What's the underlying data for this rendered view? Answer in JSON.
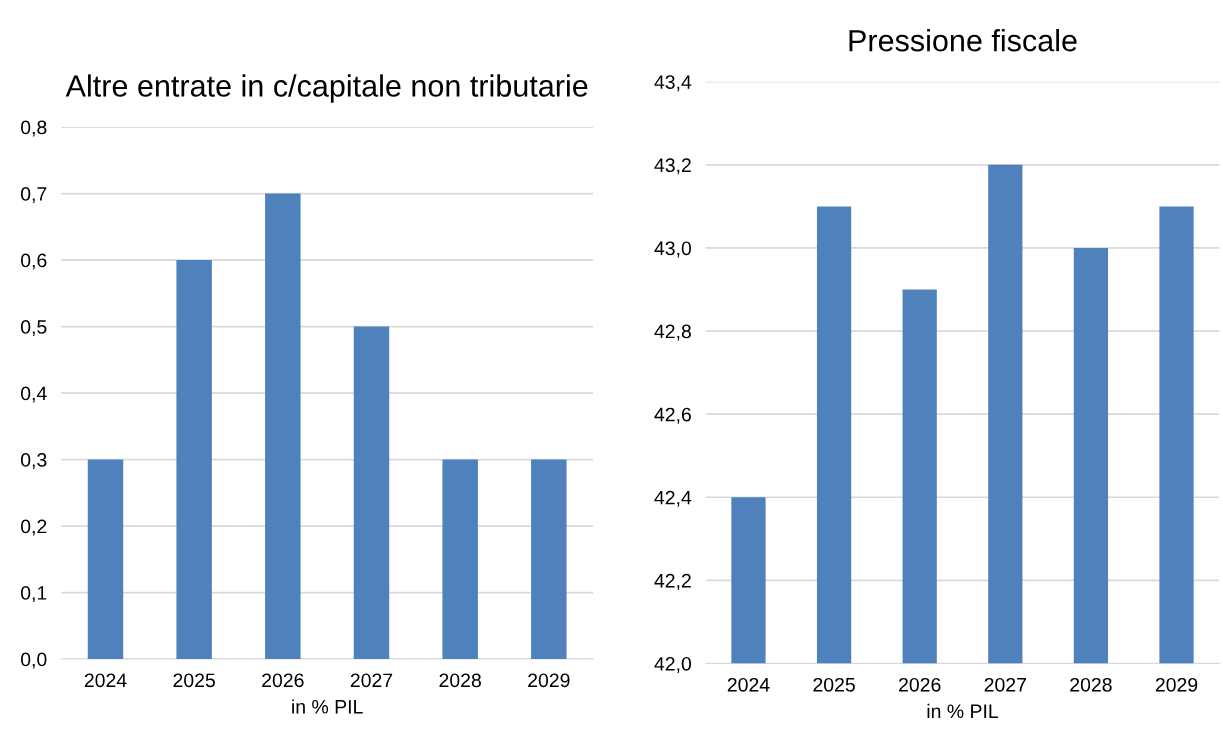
{
  "chart_data": [
    {
      "type": "bar",
      "title": "Altre entrate in c/capitale non tributarie",
      "xlabel": "in % PIL",
      "categories": [
        "2024",
        "2025",
        "2026",
        "2027",
        "2028",
        "2029"
      ],
      "values": [
        0.3,
        0.6,
        0.7,
        0.5,
        0.3,
        0.3
      ],
      "color": "#4f81bd",
      "ylim": [
        0,
        0.8
      ],
      "yticks": [
        {
          "value": 0,
          "label": "0,0"
        },
        {
          "value": 0.1,
          "label": "0,1"
        },
        {
          "value": 0.2,
          "label": "0,2"
        },
        {
          "value": 0.3,
          "label": "0,3"
        },
        {
          "value": 0.4,
          "label": "0,4"
        },
        {
          "value": 0.5,
          "label": "0,5"
        },
        {
          "value": 0.6,
          "label": "0,6"
        },
        {
          "value": 0.7,
          "label": "0,7"
        },
        {
          "value": 0.8,
          "label": "0,8"
        }
      ],
      "grid": "y",
      "legend": false
    },
    {
      "type": "bar",
      "title": "Pressione fiscale",
      "xlabel": "in % PIL",
      "categories": [
        "2024",
        "2025",
        "2026",
        "2027",
        "2028",
        "2029"
      ],
      "values": [
        42.4,
        43.1,
        42.9,
        43.2,
        43.0,
        43.1
      ],
      "color": "#4f81bd",
      "ylim": [
        42.0,
        43.4
      ],
      "yticks": [
        {
          "value": 42.0,
          "label": "42,0"
        },
        {
          "value": 42.2,
          "label": "42,2"
        },
        {
          "value": 42.4,
          "label": "42,4"
        },
        {
          "value": 42.6,
          "label": "42,6"
        },
        {
          "value": 42.8,
          "label": "42,8"
        },
        {
          "value": 43.0,
          "label": "43,0"
        },
        {
          "value": 43.2,
          "label": "43,2"
        },
        {
          "value": 43.4,
          "label": "43,4"
        }
      ],
      "grid": "y",
      "legend": false
    }
  ]
}
